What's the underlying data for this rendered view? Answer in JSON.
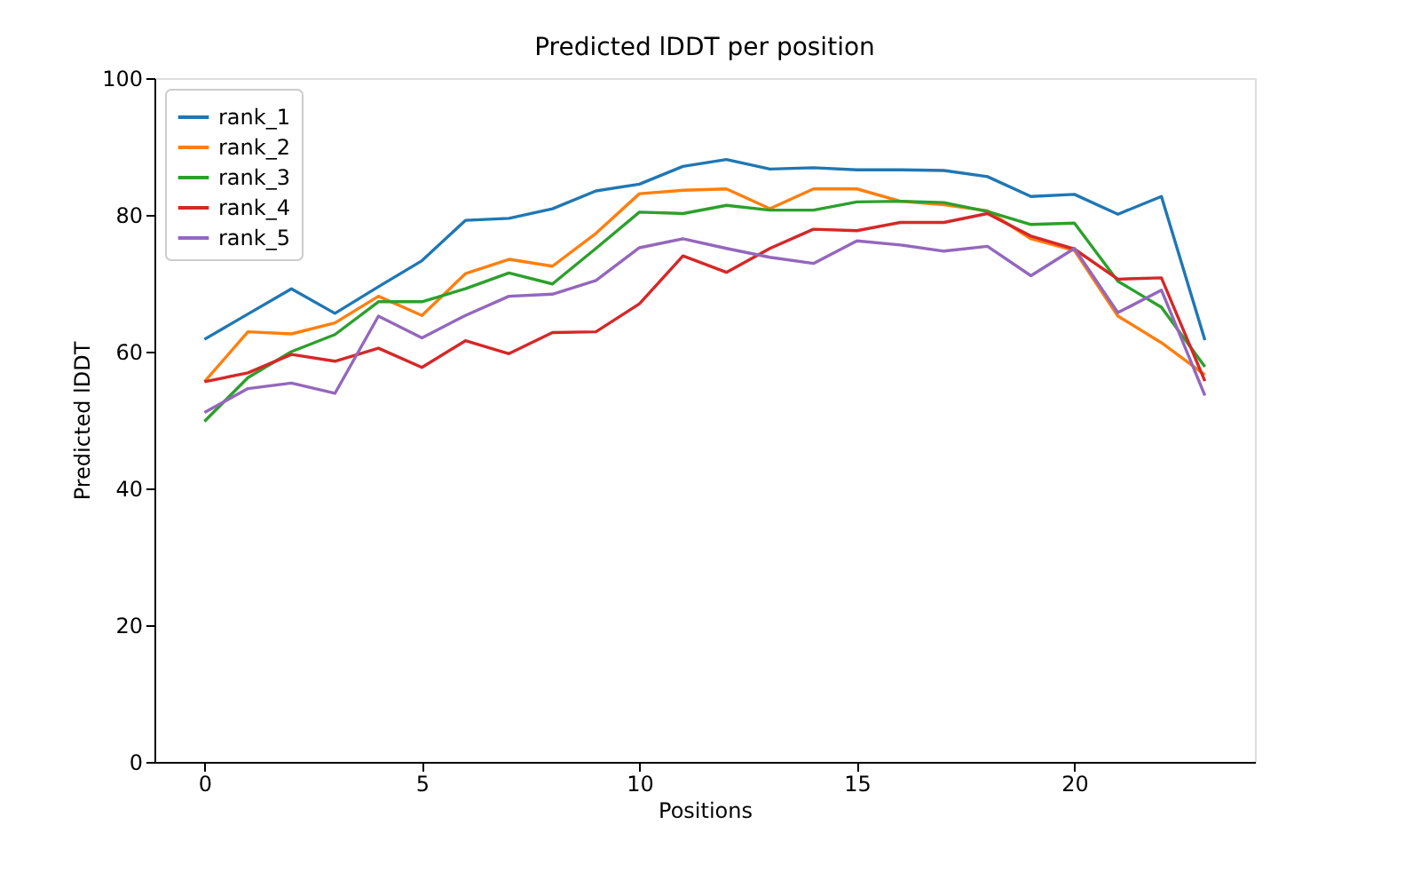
{
  "chart_data": {
    "type": "line",
    "title": "Predicted lDDT per position",
    "xlabel": "Positions",
    "ylabel": "Predicted lDDT",
    "x": [
      0,
      1,
      2,
      3,
      4,
      5,
      6,
      7,
      8,
      9,
      10,
      11,
      12,
      13,
      14,
      15,
      16,
      17,
      18,
      19,
      20,
      21,
      22,
      23
    ],
    "series": [
      {
        "name": "rank_1",
        "color": "#1f77b4",
        "values": [
          61.8,
          65.5,
          69.2,
          65.6,
          69.5,
          73.3,
          79.2,
          79.5,
          80.9,
          83.5,
          84.5,
          87.1,
          88.1,
          86.7,
          86.9,
          86.6,
          86.6,
          86.5,
          85.6,
          82.7,
          83.0,
          80.1,
          82.7,
          61.7
        ]
      },
      {
        "name": "rank_2",
        "color": "#ff7f0e",
        "values": [
          55.6,
          62.9,
          62.6,
          64.2,
          68.1,
          65.3,
          71.4,
          73.5,
          72.5,
          77.3,
          83.1,
          83.6,
          83.8,
          80.9,
          83.8,
          83.8,
          82.0,
          81.5,
          80.6,
          76.5,
          74.8,
          65.2,
          61.3,
          56.6
        ]
      },
      {
        "name": "rank_3",
        "color": "#2ca02c",
        "values": [
          49.8,
          56.2,
          60.0,
          62.5,
          67.3,
          67.3,
          69.2,
          71.5,
          69.9,
          75.1,
          80.4,
          80.2,
          81.4,
          80.7,
          80.7,
          81.9,
          82.0,
          81.8,
          80.5,
          78.6,
          78.8,
          70.3,
          66.5,
          57.8
        ]
      },
      {
        "name": "rank_4",
        "color": "#d62728",
        "values": [
          55.6,
          56.9,
          59.6,
          58.6,
          60.5,
          57.7,
          61.6,
          59.7,
          62.8,
          62.9,
          67.0,
          74.0,
          71.6,
          75.1,
          77.9,
          77.7,
          78.9,
          78.9,
          80.2,
          76.9,
          75.0,
          70.6,
          70.8,
          55.7
        ]
      },
      {
        "name": "rank_5",
        "color": "#9467bd",
        "values": [
          51.1,
          54.6,
          55.4,
          53.9,
          65.2,
          62.0,
          65.3,
          68.1,
          68.4,
          70.4,
          75.2,
          76.5,
          75.1,
          73.8,
          72.9,
          76.2,
          75.6,
          74.7,
          75.4,
          71.1,
          75.1,
          65.7,
          69.0,
          53.6
        ]
      }
    ],
    "xlim": [
      -1.15,
      24.15
    ],
    "xticks": [
      0,
      5,
      10,
      15,
      20
    ],
    "ylim": [
      0,
      100
    ],
    "yticks": [
      0,
      20,
      40,
      60,
      80,
      100
    ],
    "grid": false,
    "legend": "top left",
    "marker": "none",
    "line_style": "solid"
  }
}
